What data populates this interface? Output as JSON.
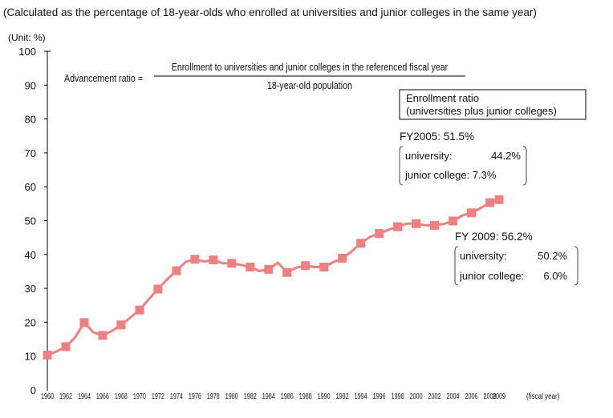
{
  "chart_data": {
    "type": "line",
    "title": "(Calculated as the percentage of 18-year-olds who enrolled at universities and junior colleges in the same year)",
    "unit_label": "(Unit: %)",
    "x_axis_unit": "(fiscal year)",
    "ylim": [
      0,
      100
    ],
    "y_ticks": [
      "0",
      "10",
      "20",
      "30",
      "40",
      "50",
      "60",
      "70",
      "80",
      "90",
      "100"
    ],
    "x_ticks": [
      "1960",
      "1962",
      "1964",
      "1966",
      "1968",
      "1970",
      "1972",
      "1974",
      "1976",
      "1978",
      "1980",
      "1982",
      "1984",
      "1986",
      "1988",
      "1990",
      "1992",
      "1994",
      "1996",
      "1998",
      "2000",
      "2002",
      "2004",
      "2006",
      "2008",
      "2009"
    ],
    "series": [
      {
        "color": "#f08080",
        "x": [
          1960,
          1961,
          1962,
          1963,
          1964,
          1965,
          1966,
          1967,
          1968,
          1969,
          1970,
          1971,
          1972,
          1973,
          1974,
          1975,
          1976,
          1977,
          1978,
          1979,
          1980,
          1981,
          1982,
          1983,
          1984,
          1985,
          1986,
          1987,
          1988,
          1989,
          1990,
          1991,
          1992,
          1993,
          1994,
          1995,
          1996,
          1997,
          1998,
          1999,
          2000,
          2001,
          2002,
          2003,
          2004,
          2005,
          2006,
          2007,
          2008,
          2009
        ],
        "y": [
          10.3,
          11.4,
          12.8,
          15.5,
          19.9,
          17.0,
          16.1,
          17.4,
          19.2,
          21.4,
          23.6,
          26.8,
          29.8,
          32.7,
          35.2,
          37.8,
          38.6,
          37.9,
          38.4,
          37.4,
          37.4,
          36.9,
          36.3,
          35.1,
          35.6,
          37.6,
          34.7,
          36.1,
          36.7,
          36.3,
          36.3,
          37.7,
          38.9,
          40.9,
          43.3,
          45.2,
          46.2,
          47.3,
          48.2,
          49.1,
          49.1,
          48.6,
          48.6,
          49.0,
          49.9,
          51.5,
          52.3,
          53.7,
          55.3,
          56.2
        ],
        "marker_years": [
          1960,
          1962,
          1964,
          1966,
          1968,
          1970,
          1972,
          1974,
          1976,
          1978,
          1980,
          1982,
          1984,
          1986,
          1988,
          1990,
          1992,
          1994,
          1996,
          1998,
          2000,
          2002,
          2004,
          2006,
          2008,
          2009
        ]
      }
    ],
    "annotations": {
      "formula": {
        "left": "Advancement ratio =",
        "numerator": "Enrollment to universities and junior colleges in the referenced fiscal year",
        "denominator": "18-year-old population"
      },
      "legend": {
        "line1": "Enrollment ratio",
        "line2": "(universities plus junior colleges)"
      },
      "fy2005": {
        "title": "FY2005: 51.5%",
        "row1_label": "university:",
        "row1_value": "44.2%",
        "row2": "junior college: 7.3%"
      },
      "fy2009": {
        "title": "FY 2009: 56.2%",
        "row1_label": "university:",
        "row1_value": "50.2%",
        "row2_label": "junior college:",
        "row2_value": "6.0%"
      }
    }
  }
}
